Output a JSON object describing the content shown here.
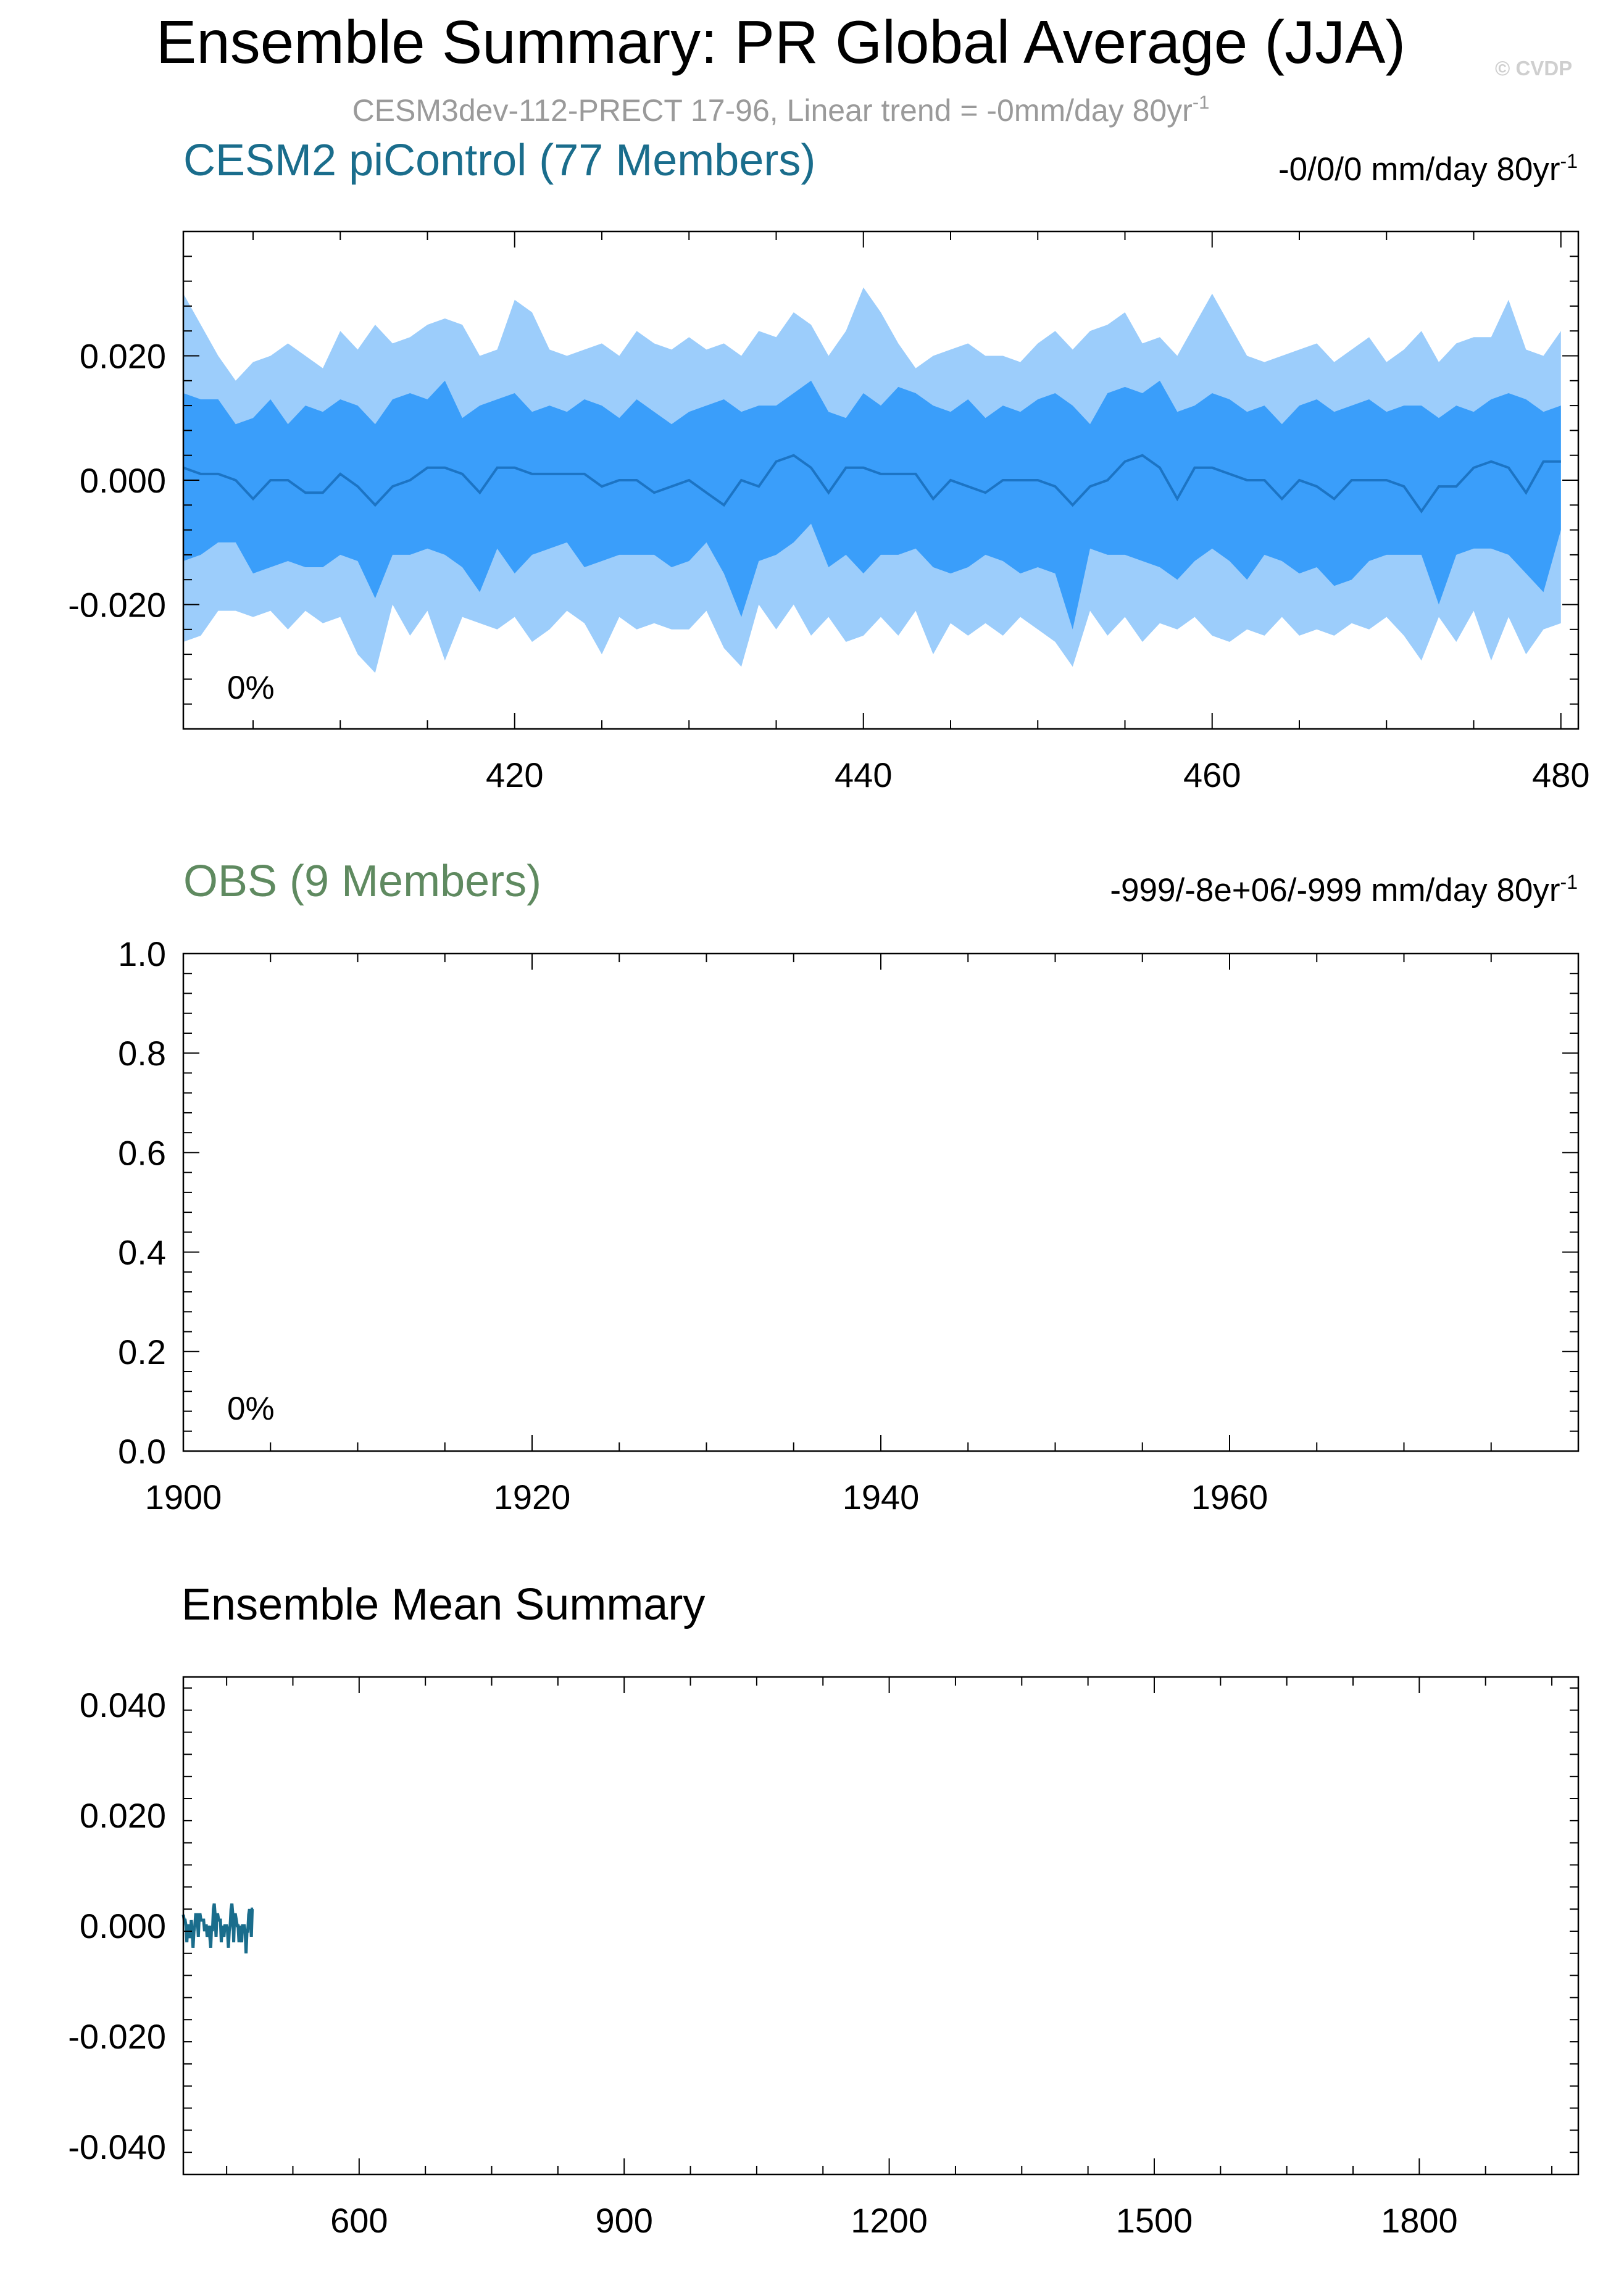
{
  "header": {
    "title": "Ensemble Summary: PR Global Average (JJA)",
    "subtitle_text": "CESM3dev-112-PRECT 17-96, Linear trend = -0mm/day 80yr",
    "subtitle_sup": "-1",
    "watermark": "© CVDP"
  },
  "chart_data": [
    {
      "id": "panel1",
      "type": "area",
      "title": "CESM2 piControl (77 Members)",
      "title_color": "#1a6d8c",
      "trend_text": "-0/0/0 mm/day 80yr",
      "trend_sup": "-1",
      "percent_label": "0%",
      "xlim": [
        401,
        481
      ],
      "ylim": [
        -0.04,
        0.04
      ],
      "xticks": [
        420,
        440,
        460,
        480
      ],
      "yticks": [
        -0.02,
        0.0,
        0.02
      ],
      "ytick_labels": [
        "-0.020",
        "0.000",
        "0.020"
      ],
      "colors": {
        "outer": "#9ccdfb",
        "inner": "#3a9efa",
        "mean": "#1c74c4"
      },
      "x": [
        401,
        402,
        403,
        404,
        405,
        406,
        407,
        408,
        409,
        410,
        411,
        412,
        413,
        414,
        415,
        416,
        417,
        418,
        419,
        420,
        421,
        422,
        423,
        424,
        425,
        426,
        427,
        428,
        429,
        430,
        431,
        432,
        433,
        434,
        435,
        436,
        437,
        438,
        439,
        440,
        441,
        442,
        443,
        444,
        445,
        446,
        447,
        448,
        449,
        450,
        451,
        452,
        453,
        454,
        455,
        456,
        457,
        458,
        459,
        460,
        461,
        462,
        463,
        464,
        465,
        466,
        467,
        468,
        469,
        470,
        471,
        472,
        473,
        474,
        475,
        476,
        477,
        478,
        479,
        480
      ],
      "series": [
        {
          "role": "max",
          "values": [
            0.03,
            0.025,
            0.02,
            0.016,
            0.019,
            0.02,
            0.022,
            0.02,
            0.018,
            0.024,
            0.021,
            0.025,
            0.022,
            0.023,
            0.025,
            0.026,
            0.025,
            0.02,
            0.021,
            0.029,
            0.027,
            0.021,
            0.02,
            0.021,
            0.022,
            0.02,
            0.024,
            0.022,
            0.021,
            0.023,
            0.021,
            0.022,
            0.02,
            0.024,
            0.023,
            0.027,
            0.025,
            0.02,
            0.024,
            0.031,
            0.027,
            0.022,
            0.018,
            0.02,
            0.021,
            0.022,
            0.02,
            0.02,
            0.019,
            0.022,
            0.024,
            0.021,
            0.024,
            0.025,
            0.027,
            0.022,
            0.023,
            0.02,
            0.025,
            0.03,
            0.025,
            0.02,
            0.019,
            0.02,
            0.021,
            0.022,
            0.019,
            0.021,
            0.023,
            0.019,
            0.021,
            0.024,
            0.019,
            0.022,
            0.023,
            0.023,
            0.029,
            0.021,
            0.02,
            0.024
          ]
        },
        {
          "role": "q_high",
          "values": [
            0.014,
            0.013,
            0.013,
            0.009,
            0.01,
            0.013,
            0.009,
            0.012,
            0.011,
            0.013,
            0.012,
            0.009,
            0.013,
            0.014,
            0.013,
            0.016,
            0.01,
            0.012,
            0.013,
            0.014,
            0.011,
            0.012,
            0.011,
            0.013,
            0.012,
            0.01,
            0.013,
            0.011,
            0.009,
            0.011,
            0.012,
            0.013,
            0.011,
            0.012,
            0.012,
            0.014,
            0.016,
            0.011,
            0.01,
            0.014,
            0.012,
            0.015,
            0.014,
            0.012,
            0.011,
            0.013,
            0.01,
            0.012,
            0.011,
            0.013,
            0.014,
            0.012,
            0.009,
            0.014,
            0.015,
            0.014,
            0.016,
            0.011,
            0.012,
            0.014,
            0.013,
            0.011,
            0.012,
            0.009,
            0.012,
            0.013,
            0.011,
            0.012,
            0.013,
            0.011,
            0.012,
            0.012,
            0.01,
            0.012,
            0.011,
            0.013,
            0.014,
            0.013,
            0.011,
            0.012
          ]
        },
        {
          "role": "mean",
          "values": [
            0.002,
            0.001,
            0.001,
            0.0,
            -0.003,
            0.0,
            0.0,
            -0.002,
            -0.002,
            0.001,
            -0.001,
            -0.004,
            -0.001,
            0.0,
            0.002,
            0.002,
            0.001,
            -0.002,
            0.002,
            0.002,
            0.001,
            0.001,
            0.001,
            0.001,
            -0.001,
            0.0,
            0.0,
            -0.002,
            -0.001,
            0.0,
            -0.002,
            -0.004,
            0.0,
            -0.001,
            0.003,
            0.004,
            0.002,
            -0.002,
            0.002,
            0.002,
            0.001,
            0.001,
            0.001,
            -0.003,
            0.0,
            -0.001,
            -0.002,
            0.0,
            0.0,
            0.0,
            -0.001,
            -0.004,
            -0.001,
            0.0,
            0.003,
            0.004,
            0.002,
            -0.003,
            0.002,
            0.002,
            0.001,
            0.0,
            0.0,
            -0.003,
            0.0,
            -0.001,
            -0.003,
            0.0,
            0.0,
            0.0,
            -0.001,
            -0.005,
            -0.001,
            -0.001,
            0.002,
            0.003,
            0.002,
            -0.002,
            0.003,
            0.003
          ]
        },
        {
          "role": "q_low",
          "values": [
            -0.013,
            -0.012,
            -0.01,
            -0.01,
            -0.015,
            -0.014,
            -0.013,
            -0.014,
            -0.014,
            -0.012,
            -0.013,
            -0.019,
            -0.012,
            -0.012,
            -0.011,
            -0.012,
            -0.014,
            -0.018,
            -0.011,
            -0.015,
            -0.012,
            -0.011,
            -0.01,
            -0.014,
            -0.013,
            -0.012,
            -0.012,
            -0.012,
            -0.014,
            -0.013,
            -0.01,
            -0.015,
            -0.022,
            -0.013,
            -0.012,
            -0.01,
            -0.007,
            -0.014,
            -0.012,
            -0.015,
            -0.012,
            -0.012,
            -0.011,
            -0.014,
            -0.015,
            -0.014,
            -0.012,
            -0.013,
            -0.015,
            -0.014,
            -0.015,
            -0.024,
            -0.011,
            -0.012,
            -0.012,
            -0.013,
            -0.014,
            -0.016,
            -0.013,
            -0.011,
            -0.013,
            -0.016,
            -0.012,
            -0.013,
            -0.015,
            -0.014,
            -0.017,
            -0.016,
            -0.013,
            -0.012,
            -0.012,
            -0.012,
            -0.02,
            -0.012,
            -0.011,
            -0.011,
            -0.012,
            -0.015,
            -0.018,
            -0.008
          ]
        },
        {
          "role": "min",
          "values": [
            -0.026,
            -0.025,
            -0.021,
            -0.021,
            -0.022,
            -0.021,
            -0.024,
            -0.021,
            -0.023,
            -0.022,
            -0.028,
            -0.031,
            -0.02,
            -0.025,
            -0.021,
            -0.029,
            -0.022,
            -0.023,
            -0.024,
            -0.022,
            -0.026,
            -0.024,
            -0.021,
            -0.023,
            -0.028,
            -0.022,
            -0.024,
            -0.023,
            -0.024,
            -0.024,
            -0.021,
            -0.027,
            -0.03,
            -0.02,
            -0.024,
            -0.02,
            -0.025,
            -0.022,
            -0.026,
            -0.025,
            -0.022,
            -0.025,
            -0.021,
            -0.028,
            -0.023,
            -0.025,
            -0.023,
            -0.025,
            -0.022,
            -0.024,
            -0.026,
            -0.03,
            -0.021,
            -0.025,
            -0.022,
            -0.026,
            -0.023,
            -0.024,
            -0.022,
            -0.025,
            -0.026,
            -0.024,
            -0.025,
            -0.022,
            -0.025,
            -0.024,
            -0.025,
            -0.023,
            -0.024,
            -0.022,
            -0.025,
            -0.029,
            -0.022,
            -0.026,
            -0.021,
            -0.029,
            -0.022,
            -0.028,
            -0.024,
            -0.023
          ]
        }
      ]
    },
    {
      "id": "panel2",
      "type": "area",
      "title": "OBS (9 Members)",
      "title_color": "#5f8a60",
      "trend_text": "-999/-8e+06/-999 mm/day 80yr",
      "trend_sup": "-1",
      "percent_label": "0%",
      "xlim": [
        1900,
        1980
      ],
      "ylim": [
        0.0,
        1.0
      ],
      "xticks": [
        1900,
        1920,
        1940,
        1960
      ],
      "yticks": [
        0.0,
        0.2,
        0.4,
        0.6,
        0.8,
        1.0
      ],
      "ytick_labels": [
        "0.0",
        "0.2",
        "0.4",
        "0.6",
        "0.8",
        "1.0"
      ],
      "series": []
    },
    {
      "id": "panel3",
      "type": "line",
      "title": "Ensemble Mean Summary",
      "title_color": "#000000",
      "xlim": [
        401,
        1980
      ],
      "ylim": [
        -0.045,
        0.045
      ],
      "xticks": [
        600,
        900,
        1200,
        1500,
        1800
      ],
      "yticks": [
        -0.04,
        -0.02,
        0.0,
        0.02,
        0.04
      ],
      "ytick_labels": [
        "-0.040",
        "-0.020",
        "0.000",
        "0.020",
        "0.040"
      ],
      "line_color": "#1a6d8c",
      "series": [
        {
          "role": "ensemble-mean",
          "x_start": 401,
          "x_end": 480
        }
      ]
    }
  ]
}
